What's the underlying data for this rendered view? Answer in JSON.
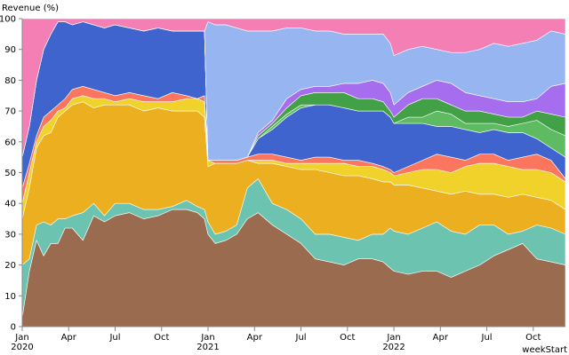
{
  "chart_data": {
    "type": "area",
    "stacked": true,
    "ylabel": "Revenue (%)",
    "xlabel": "weekStart",
    "ylim": [
      0,
      100
    ],
    "y_ticks": [
      0,
      10,
      20,
      30,
      40,
      50,
      60,
      70,
      80,
      90,
      100
    ],
    "x_ticks": [
      {
        "week": 0,
        "label": "Jan",
        "year": "2020"
      },
      {
        "week": 13,
        "label": "Apr",
        "year": ""
      },
      {
        "week": 26,
        "label": "Jul",
        "year": ""
      },
      {
        "week": 39,
        "label": "Oct",
        "year": ""
      },
      {
        "week": 52,
        "label": "Jan",
        "year": "2021"
      },
      {
        "week": 65,
        "label": "Apr",
        "year": ""
      },
      {
        "week": 78,
        "label": "Jul",
        "year": ""
      },
      {
        "week": 91,
        "label": "Oct",
        "year": ""
      },
      {
        "week": 104,
        "label": "Jan",
        "year": "2022"
      },
      {
        "week": 117,
        "label": "Apr",
        "year": ""
      },
      {
        "week": 130,
        "label": "Jul",
        "year": ""
      },
      {
        "week": 143,
        "label": "Oct",
        "year": ""
      }
    ],
    "x_range_weeks": [
      0,
      152
    ],
    "grid": false,
    "legend": "none",
    "boundaries": {
      "weeks": [
        0,
        2,
        4,
        6,
        8,
        10,
        12,
        14,
        17,
        20,
        23,
        26,
        30,
        34,
        38,
        42,
        46,
        49,
        51,
        52,
        54,
        57,
        60,
        63,
        66,
        70,
        74,
        78,
        82,
        86,
        90,
        94,
        98,
        101,
        103,
        104,
        108,
        112,
        116,
        120,
        124,
        128,
        132,
        136,
        140,
        144,
        148,
        152
      ],
      "lines": [
        [
          3,
          18,
          28,
          23,
          27,
          27,
          32,
          32,
          28,
          36,
          34,
          36,
          37,
          35,
          36,
          38,
          38,
          37,
          35,
          30,
          27,
          28,
          30,
          35,
          37,
          33,
          30,
          27,
          22,
          21,
          20,
          22,
          22,
          21,
          19,
          18,
          17,
          18,
          18,
          16,
          18,
          20,
          23,
          25,
          27,
          22,
          21,
          20
        ],
        [
          20,
          22,
          33,
          34,
          33,
          35,
          35,
          36,
          37,
          40,
          36,
          40,
          40,
          38,
          38,
          39,
          41,
          39,
          38,
          34,
          30,
          31,
          33,
          45,
          48,
          40,
          38,
          35,
          30,
          30,
          29,
          28,
          30,
          30,
          32,
          31,
          30,
          32,
          34,
          31,
          30,
          33,
          33,
          30,
          31,
          33,
          32,
          30
        ],
        [
          35,
          45,
          58,
          62,
          63,
          68,
          70,
          72,
          73,
          71,
          72,
          72,
          72,
          70,
          71,
          70,
          70,
          70,
          68,
          52,
          53,
          53,
          53,
          54,
          53,
          53,
          52,
          51,
          51,
          50,
          49,
          49,
          48,
          47,
          47,
          46,
          46,
          45,
          44,
          43,
          44,
          43,
          43,
          42,
          43,
          42,
          41,
          38
        ],
        [
          40,
          50,
          60,
          65,
          67,
          70,
          71,
          74,
          75,
          74,
          74,
          73,
          74,
          73,
          73,
          73,
          74,
          74,
          73,
          54,
          53,
          53,
          53,
          54,
          54,
          54,
          53,
          53,
          53,
          53,
          53,
          52,
          52,
          51,
          50,
          49,
          50,
          51,
          51,
          50,
          52,
          53,
          53,
          52,
          51,
          51,
          50,
          47
        ],
        [
          45,
          53,
          62,
          68,
          70,
          72,
          74,
          77,
          78,
          77,
          76,
          75,
          76,
          75,
          74,
          76,
          75,
          74,
          75,
          55,
          54,
          54,
          54,
          55,
          56,
          56,
          55,
          54,
          55,
          55,
          54,
          54,
          53,
          52,
          51,
          50,
          52,
          54,
          56,
          55,
          54,
          56,
          56,
          54,
          55,
          56,
          54,
          48
        ],
        [
          55,
          65,
          80,
          90,
          95,
          99,
          99,
          98,
          99,
          98,
          97,
          98,
          97,
          96,
          97,
          96,
          96,
          96,
          96,
          54,
          54,
          54,
          54,
          55,
          61,
          64,
          68,
          71,
          72,
          72,
          71,
          70,
          70,
          70,
          68,
          66,
          66,
          66,
          65,
          65,
          64,
          63,
          64,
          63,
          63,
          61,
          58,
          55
        ],
        [
          55,
          65,
          80,
          90,
          95,
          99,
          99,
          98,
          99,
          98,
          97,
          98,
          97,
          96,
          97,
          96,
          96,
          96,
          96,
          54,
          54,
          54,
          54,
          55,
          61,
          65,
          69,
          72,
          72,
          72,
          71,
          70,
          70,
          70,
          68,
          66,
          68,
          68,
          70,
          69,
          66,
          66,
          66,
          65,
          66,
          67,
          64,
          62
        ],
        [
          55,
          65,
          80,
          90,
          95,
          99,
          99,
          98,
          99,
          98,
          97,
          98,
          97,
          96,
          97,
          96,
          96,
          96,
          96,
          54,
          54,
          54,
          54,
          55,
          62,
          66,
          71,
          75,
          76,
          76,
          76,
          74,
          74,
          73,
          70,
          68,
          72,
          74,
          74,
          72,
          70,
          70,
          69,
          68,
          68,
          70,
          69,
          68
        ],
        [
          55,
          65,
          80,
          90,
          95,
          99,
          99,
          98,
          99,
          98,
          97,
          98,
          97,
          96,
          97,
          96,
          96,
          96,
          96,
          54,
          54,
          54,
          54,
          55,
          63,
          67,
          74,
          77,
          78,
          78,
          79,
          79,
          80,
          79,
          76,
          72,
          76,
          78,
          80,
          79,
          76,
          75,
          74,
          73,
          73,
          74,
          78,
          79
        ],
        [
          55,
          65,
          80,
          90,
          95,
          99,
          99,
          98,
          99,
          98,
          97,
          98,
          97,
          96,
          97,
          96,
          96,
          96,
          96,
          99,
          98,
          98,
          97,
          96,
          96,
          96,
          97,
          97,
          96,
          96,
          95,
          95,
          95,
          95,
          92,
          88,
          90,
          91,
          90,
          89,
          89,
          90,
          92,
          91,
          92,
          93,
          96,
          95
        ],
        [
          100,
          100,
          100,
          100,
          100,
          100,
          100,
          100,
          100,
          100,
          100,
          100,
          100,
          100,
          100,
          100,
          100,
          100,
          100,
          100,
          100,
          100,
          100,
          100,
          100,
          100,
          100,
          100,
          100,
          100,
          100,
          100,
          100,
          100,
          100,
          100,
          100,
          100,
          100,
          100,
          100,
          100,
          100,
          100,
          100,
          100,
          100,
          100
        ]
      ]
    },
    "layer_colors": [
      "#9a6b4f",
      "#6cc3b0",
      "#ebaf20",
      "#f0d22a",
      "#fc765f",
      "#3f64ce",
      "#5ebb62",
      "#42a046",
      "#a66eee",
      "#97b5f0",
      "#f37fb4"
    ],
    "axis_color": "#888888",
    "separator_color": "#ffffff"
  }
}
